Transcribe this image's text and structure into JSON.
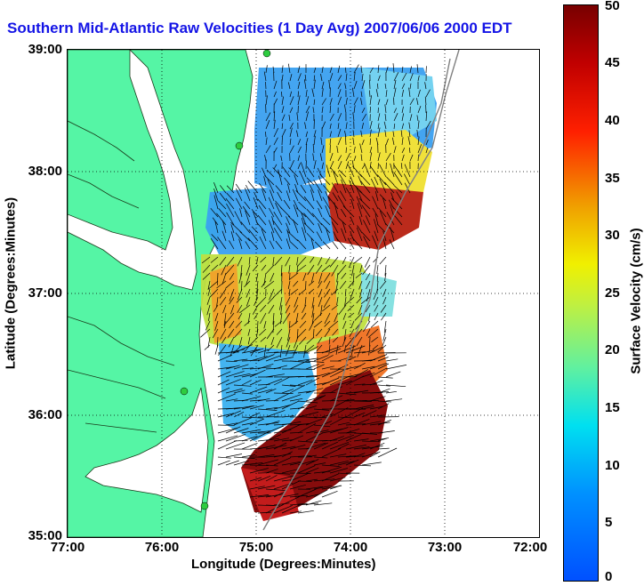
{
  "title": "Southern Mid-Atlantic Raw Velocities (1 Day Avg) 2007/06/06 2000 EDT",
  "x_axis": {
    "label": "Longitude (Degrees:Minutes)",
    "ticks": [
      "77:00",
      "76:00",
      "75:00",
      "74:00",
      "73:00",
      "72:00"
    ]
  },
  "y_axis": {
    "label": "Latitude (Degrees:Minutes)",
    "ticks": [
      "39:00",
      "38:00",
      "37:00",
      "36:00",
      "35:00"
    ]
  },
  "colorbar": {
    "label": "Surface Velocity (cm/s)",
    "ticks": [
      "50",
      "45",
      "40",
      "35",
      "30",
      "25",
      "20",
      "15",
      "10",
      "5",
      "0"
    ],
    "min": 0,
    "max": 50
  },
  "map": {
    "lon_range": [
      -77,
      -72
    ],
    "lat_range": [
      35,
      39
    ],
    "grid": true,
    "land_color": "#55f5a5",
    "sea_color": "#ffffff",
    "station_color": "#2ecc40"
  }
}
